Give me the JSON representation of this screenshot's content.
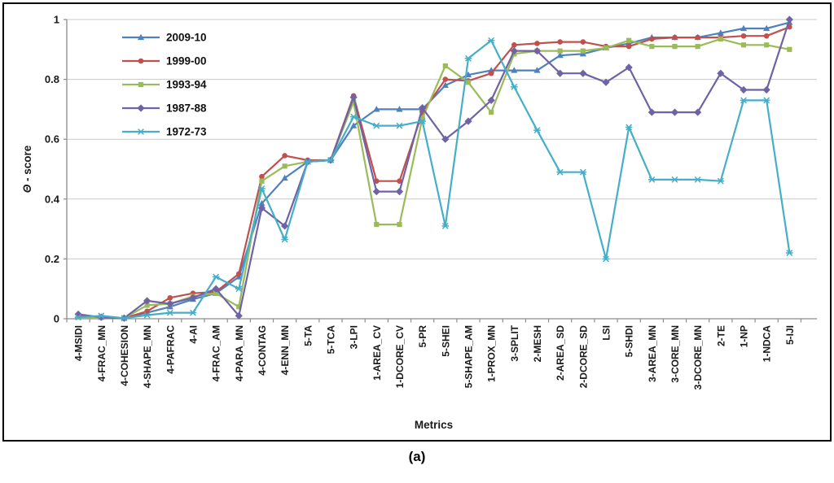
{
  "figure": {
    "caption": "(a)"
  },
  "chart_data": {
    "type": "line",
    "title": "",
    "xlabel": "Metrics",
    "ylabel": "Θ - score",
    "ylabel_parts": [
      "Θ",
      " - score"
    ],
    "ylim": [
      0,
      1
    ],
    "grid": true,
    "legend_position": "upper-left-inside",
    "yticks": [
      {
        "v": 0,
        "label": "0"
      },
      {
        "v": 0.2,
        "label": "0.2"
      },
      {
        "v": 0.4,
        "label": "0.4"
      },
      {
        "v": 0.6,
        "label": "0.6"
      },
      {
        "v": 0.8,
        "label": "0.8"
      },
      {
        "v": 1,
        "label": "1"
      }
    ],
    "categories": [
      "4-MSIDI",
      "4-FRAC_MN",
      "4-COHESION",
      "4-SHAPE_MN",
      "4-PAFRAC",
      "4-AI",
      "4-FRAC_AM",
      "4-PARA_MN",
      "4-CONTAG",
      "4-ENN_MN",
      "5-TA",
      "5-TCA",
      "3-LPI",
      "1-AREA_CV",
      "1-DCORE_CV",
      "5-PR",
      "5-SHEI",
      "5-SHAPE_AM",
      "1-PROX_MN",
      "3-SPLIT",
      "2-MESH",
      "2-AREA_SD",
      "2-DCORE_SD",
      "LSI",
      "5-SHDI",
      "3-AREA_MN",
      "3-CORE_MN",
      "3-DCORE_MN",
      "2-TE",
      "1-NP",
      "1-NDCA",
      "5-IJI"
    ],
    "series": [
      {
        "name": "2009-10",
        "color": "#4F81BD",
        "marker": "triangle",
        "values": [
          0.01,
          0.005,
          0.002,
          0.02,
          0.04,
          0.065,
          0.085,
          0.14,
          0.385,
          0.47,
          0.525,
          0.53,
          0.645,
          0.7,
          0.7,
          0.7,
          0.78,
          0.815,
          0.83,
          0.83,
          0.83,
          0.88,
          0.885,
          0.905,
          0.92,
          0.94,
          0.94,
          0.94,
          0.955,
          0.97,
          0.97,
          0.99
        ]
      },
      {
        "name": "1999-00",
        "color": "#C0504D",
        "marker": "circle",
        "values": [
          0.01,
          0.005,
          0.002,
          0.025,
          0.07,
          0.085,
          0.09,
          0.15,
          0.475,
          0.545,
          0.53,
          0.53,
          0.745,
          0.46,
          0.46,
          0.69,
          0.8,
          0.795,
          0.82,
          0.915,
          0.92,
          0.925,
          0.925,
          0.91,
          0.91,
          0.935,
          0.94,
          0.94,
          0.94,
          0.945,
          0.945,
          0.975
        ]
      },
      {
        "name": "1993-94",
        "color": "#9BBB59",
        "marker": "square",
        "values": [
          0.005,
          0.005,
          0.002,
          0.045,
          0.05,
          0.075,
          0.085,
          0.04,
          0.46,
          0.51,
          0.525,
          0.53,
          0.725,
          0.315,
          0.315,
          0.67,
          0.845,
          0.79,
          0.69,
          0.885,
          0.895,
          0.895,
          0.895,
          0.905,
          0.93,
          0.91,
          0.91,
          0.91,
          0.935,
          0.915,
          0.915,
          0.9
        ]
      },
      {
        "name": "1987-88",
        "color": "#6F62A5",
        "marker": "diamond",
        "values": [
          0.015,
          0.005,
          0.002,
          0.06,
          0.05,
          0.07,
          0.1,
          0.01,
          0.37,
          0.31,
          0.525,
          0.53,
          0.74,
          0.425,
          0.425,
          0.705,
          0.6,
          0.66,
          0.73,
          0.895,
          0.895,
          0.82,
          0.82,
          0.79,
          0.84,
          0.69,
          0.69,
          0.69,
          0.82,
          0.765,
          0.765,
          1.0
        ]
      },
      {
        "name": "1972-73",
        "color": "#45AEC9",
        "marker": "x",
        "values": [
          0.005,
          0.01,
          0.002,
          0.012,
          0.02,
          0.02,
          0.14,
          0.1,
          0.435,
          0.265,
          0.525,
          0.53,
          0.675,
          0.645,
          0.645,
          0.66,
          0.31,
          0.87,
          0.93,
          0.775,
          0.63,
          0.49,
          0.49,
          0.2,
          0.64,
          0.465,
          0.465,
          0.465,
          0.46,
          0.73,
          0.73,
          0.22
        ]
      }
    ]
  }
}
